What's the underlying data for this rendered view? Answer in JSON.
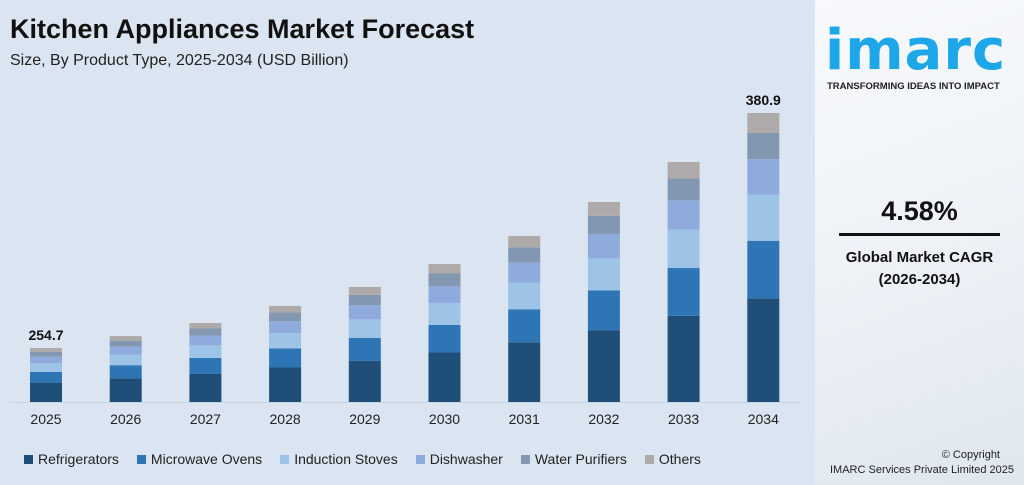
{
  "header": {
    "title": "Kitchen Appliances Market Forecast",
    "subtitle": "Size, By Product Type, 2025-2034 (USD Billion)"
  },
  "chart_data": {
    "type": "bar",
    "stacked": true,
    "title": "Kitchen Appliances Market Forecast",
    "subtitle": "Size, By Product Type, 2025-2034 (USD Billion)",
    "categories": [
      "2025",
      "2026",
      "2027",
      "2028",
      "2029",
      "2030",
      "2031",
      "2032",
      "2033",
      "2034"
    ],
    "totals": [
      254.7,
      261.1,
      268.1,
      277.3,
      287.5,
      299.8,
      314.9,
      333.1,
      354.6,
      380.9
    ],
    "total_labels": {
      "2025": "254.7",
      "2034": "380.9"
    },
    "series": [
      {
        "name": "Refrigerators",
        "color": "#1f4e79",
        "values": [
          91.4,
          93.7,
          96.2,
          99.6,
          103.2,
          107.6,
          113.1,
          119.6,
          127.3,
          136.7
        ]
      },
      {
        "name": "Microwave Ovens",
        "color": "#2e75b6",
        "values": [
          50.7,
          52.0,
          53.4,
          55.2,
          57.2,
          59.7,
          62.7,
          66.3,
          70.6,
          75.8
        ]
      },
      {
        "name": "Induction Stoves",
        "color": "#9dc3e6",
        "values": [
          40.8,
          41.8,
          42.9,
          44.4,
          46.0,
          48.0,
          50.4,
          53.3,
          56.7,
          61.0
        ]
      },
      {
        "name": "Dishwasher",
        "color": "#8faadc",
        "values": [
          31.1,
          31.8,
          32.7,
          33.8,
          35.1,
          36.6,
          38.4,
          40.6,
          43.3,
          46.5
        ]
      },
      {
        "name": "Water Purifiers",
        "color": "#8497b0",
        "values": [
          23.2,
          23.8,
          24.4,
          25.2,
          26.2,
          27.3,
          28.7,
          30.3,
          32.3,
          34.6
        ]
      },
      {
        "name": "Others",
        "color": "#aeaaaa",
        "values": [
          17.5,
          18.0,
          18.5,
          19.1,
          19.8,
          20.6,
          21.6,
          23.0,
          24.4,
          26.3
        ]
      }
    ],
    "legend": "bottom",
    "grid": false,
    "y_axis_visible": false
  },
  "sidebar": {
    "logo_text": "imarc",
    "tagline": "TRANSFORMING IDEAS INTO IMPACT",
    "cagr_value": "4.58%",
    "cagr_label_1": "Global Market CAGR",
    "cagr_label_2": "(2026-2034)",
    "copyright_1": "© Copyright",
    "copyright_2": "IMARC Services Private Limited 2025",
    "brand_color": "#1ea7e8"
  }
}
